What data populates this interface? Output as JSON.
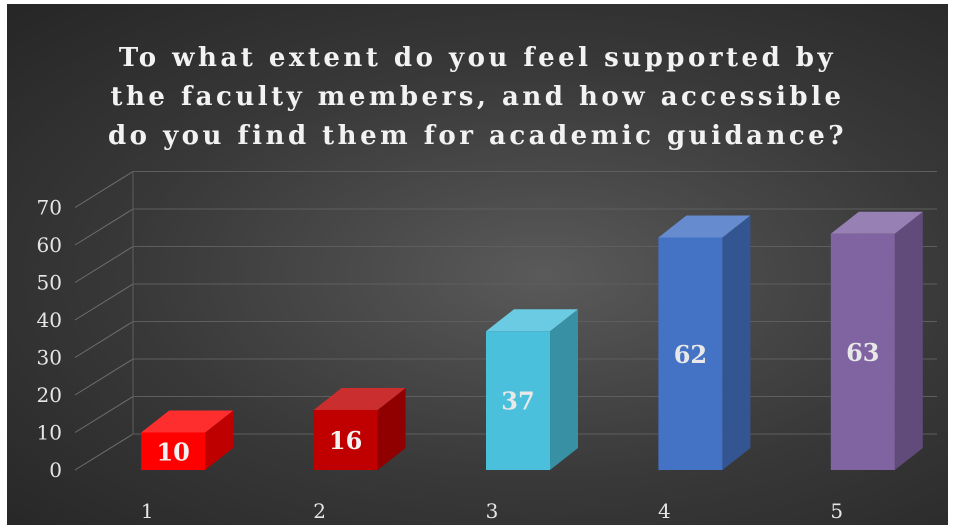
{
  "chart_data": {
    "type": "bar",
    "title_lines": [
      "To what extent do you feel supported by",
      "the faculty members, and how accessible",
      "do you find them for academic guidance?"
    ],
    "categories": [
      "1",
      "2",
      "3",
      "4",
      "5"
    ],
    "values": [
      10,
      16,
      37,
      62,
      63
    ],
    "data_labels": [
      "10",
      "16",
      "37",
      "62",
      "63"
    ],
    "y_ticks": [
      "0",
      "10",
      "20",
      "30",
      "40",
      "50",
      "60",
      "70"
    ],
    "ylim": [
      0,
      70
    ],
    "grid": true,
    "legend": "none",
    "style": "3d-column",
    "colors": [
      "#ff0000",
      "#c00000",
      "#4bc0dc",
      "#4472c4",
      "#8064a2"
    ],
    "label_colors": [
      "#f2f2f2",
      "#f2f2f2",
      "#e8e8e8",
      "#e8e8e8",
      "#e8e8e8"
    ]
  }
}
